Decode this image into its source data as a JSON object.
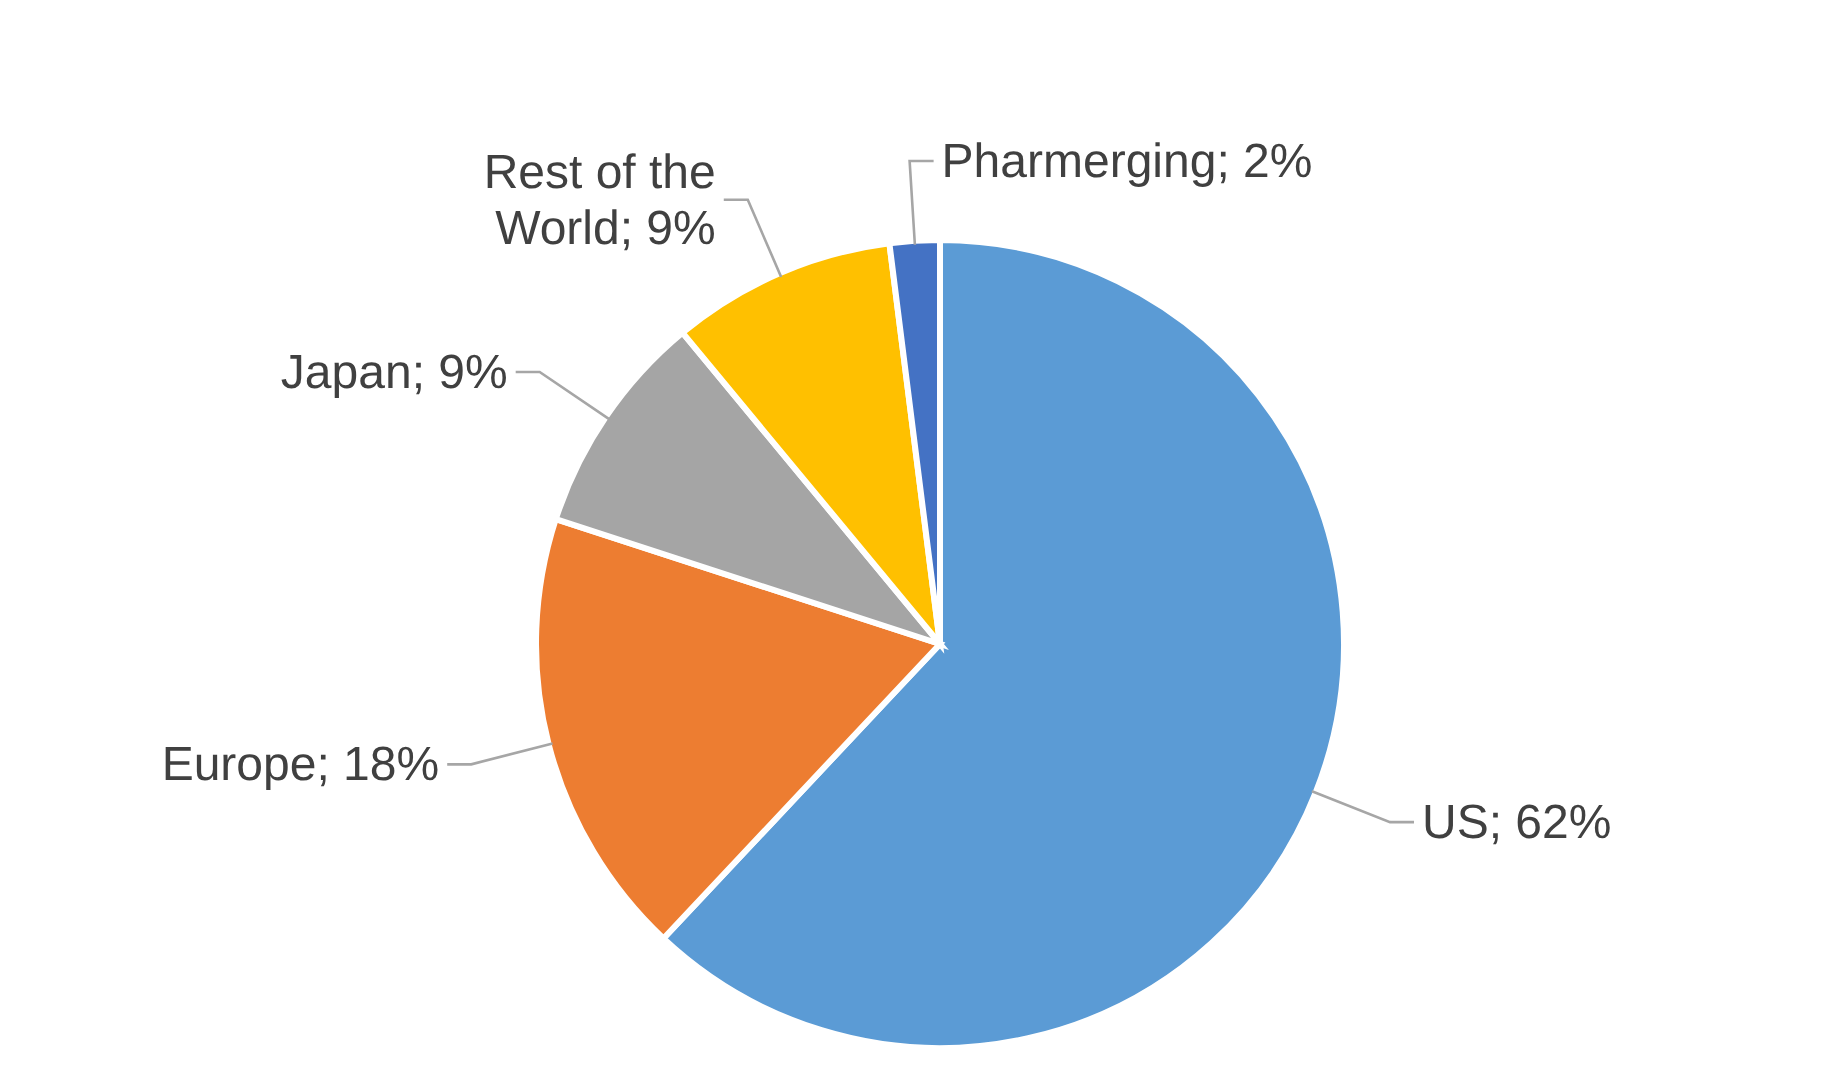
{
  "chart_data": {
    "type": "pie",
    "categories": [
      "US",
      "Europe",
      "Japan",
      "Rest of the World",
      "Pharmerging"
    ],
    "values": [
      62,
      18,
      9,
      9,
      2
    ],
    "colors": [
      "#5b9bd5",
      "#ed7d31",
      "#a5a5a5",
      "#ffc000",
      "#4472c4"
    ],
    "value_labels": [
      "62%",
      "18%",
      "9%",
      "9%",
      "2%"
    ],
    "legend": false
  }
}
